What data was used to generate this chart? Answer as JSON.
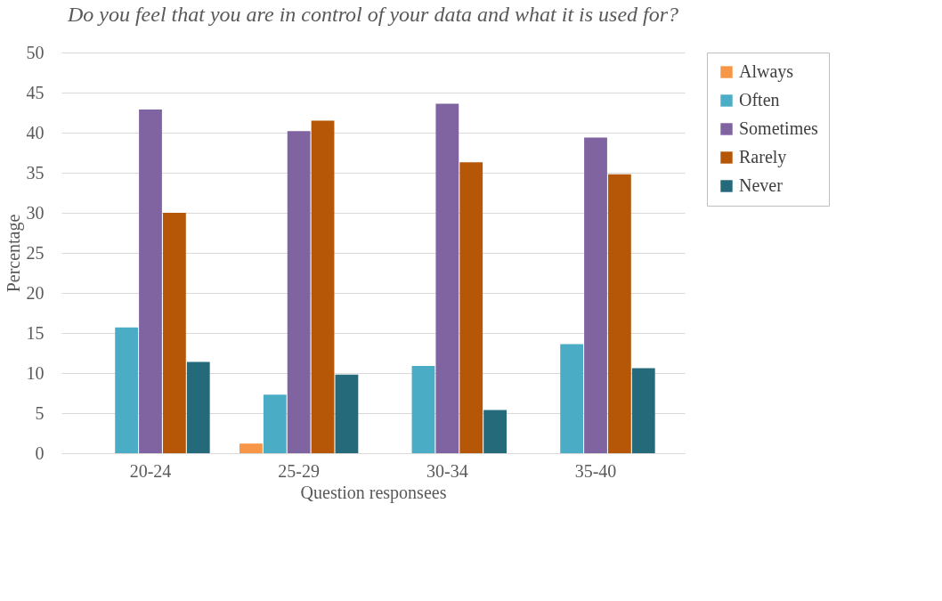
{
  "chart_data": {
    "type": "bar",
    "title": "Do you feel that you are in control of your data and what it is used for?",
    "xlabel": "Question responsees",
    "ylabel": "Percentage",
    "categories": [
      "20-24",
      "25-29",
      "30-34",
      "35-40"
    ],
    "series": [
      {
        "name": "Always",
        "color": "#f79646",
        "values": [
          null,
          1.2,
          null,
          null
        ]
      },
      {
        "name": "Often",
        "color": "#4bacc6",
        "values": [
          15.7,
          7.3,
          10.9,
          13.6
        ]
      },
      {
        "name": "Sometimes",
        "color": "#8064a2",
        "values": [
          42.9,
          40.2,
          43.6,
          39.4
        ]
      },
      {
        "name": "Rarely",
        "color": "#b65708",
        "values": [
          30.0,
          41.5,
          36.3,
          34.8
        ]
      },
      {
        "name": "Never",
        "color": "#256a7a",
        "values": [
          11.4,
          9.8,
          5.4,
          10.6
        ]
      }
    ],
    "ylim": [
      0,
      50
    ],
    "yticks": [
      0,
      5,
      10,
      15,
      20,
      25,
      30,
      35,
      40,
      45,
      50
    ],
    "grid": "y",
    "legend": "right"
  }
}
